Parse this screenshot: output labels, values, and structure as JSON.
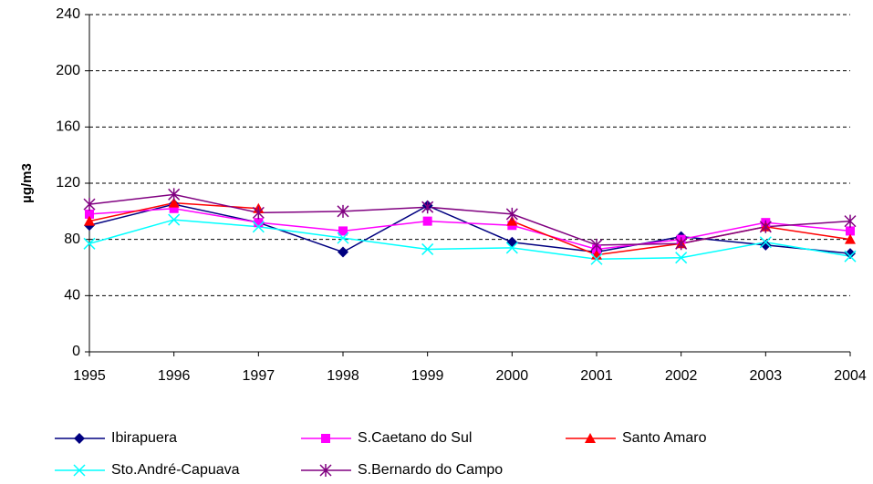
{
  "chart_data": {
    "type": "line",
    "y_label": "µg/m3",
    "categories": [
      "1995",
      "1996",
      "1997",
      "1998",
      "1999",
      "2000",
      "2001",
      "2002",
      "2003",
      "2004"
    ],
    "ylim": [
      0,
      240
    ],
    "yticks": [
      0,
      40,
      80,
      120,
      160,
      200,
      240
    ],
    "grid": true,
    "series": [
      {
        "name": "Ibirapuera",
        "color": "#000080",
        "marker": "diamond",
        "values": [
          90,
          105,
          92,
          71,
          104,
          78,
          71,
          82,
          76,
          70
        ]
      },
      {
        "name": "S.Caetano do Sul",
        "color": "#ff00ff",
        "marker": "square",
        "values": [
          98,
          102,
          92,
          86,
          93,
          90,
          73,
          80,
          92,
          86
        ]
      },
      {
        "name": "Santo Amaro",
        "color": "#ff0000",
        "marker": "triangle",
        "values": [
          93,
          106,
          102,
          null,
          null,
          93,
          69,
          77,
          89,
          80
        ]
      },
      {
        "name": "Sto.André-Capuava",
        "color": "#00ffff",
        "marker": "x",
        "values": [
          77,
          94,
          89,
          81,
          73,
          74,
          66,
          67,
          78,
          68
        ]
      },
      {
        "name": "S.Bernardo do Campo",
        "color": "#800080",
        "marker": "star",
        "values": [
          105,
          112,
          99,
          100,
          103,
          98,
          76,
          77,
          89,
          93
        ]
      }
    ]
  }
}
